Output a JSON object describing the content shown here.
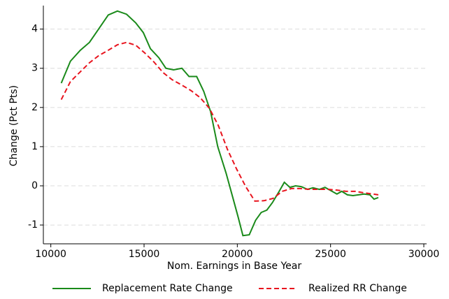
{
  "chart_data": {
    "type": "line",
    "xlabel": "Nom. Earnings in Base Year",
    "ylabel": "Change (Pct Pts)",
    "xlim": [
      9600,
      30150
    ],
    "ylim": [
      -1.48,
      4.6
    ],
    "xticks": [
      10000,
      15000,
      20000,
      25000,
      30000
    ],
    "yticks": [
      -1,
      0,
      1,
      2,
      3,
      4
    ],
    "grid": true,
    "legend": "bottom",
    "series": [
      {
        "name": "Replacement Rate Change",
        "color": "#1a8a1a",
        "dash": "solid",
        "x": [
          10560,
          11050,
          11580,
          12070,
          12560,
          13080,
          13570,
          14060,
          14550,
          14960,
          15340,
          15790,
          16170,
          16580,
          17030,
          17410,
          17820,
          18200,
          18570,
          18950,
          19400,
          19770,
          20040,
          20300,
          20640,
          20980,
          21280,
          21580,
          21880,
          22220,
          22520,
          22820,
          23120,
          23420,
          23760,
          24060,
          24400,
          24700,
          25040,
          25340,
          25600,
          25900,
          26200,
          26500,
          26800,
          27110,
          27330,
          27560
        ],
        "values": [
          2.62,
          3.18,
          3.46,
          3.66,
          4.0,
          4.36,
          4.46,
          4.38,
          4.16,
          3.91,
          3.5,
          3.27,
          3.0,
          2.96,
          3.0,
          2.79,
          2.79,
          2.41,
          1.89,
          1.0,
          0.32,
          -0.32,
          -0.79,
          -1.27,
          -1.25,
          -0.88,
          -0.68,
          -0.62,
          -0.43,
          -0.16,
          0.09,
          -0.04,
          0.0,
          -0.02,
          -0.09,
          -0.05,
          -0.09,
          -0.04,
          -0.13,
          -0.21,
          -0.14,
          -0.23,
          -0.25,
          -0.23,
          -0.21,
          -0.23,
          -0.34,
          -0.3
        ]
      },
      {
        "name": "Realized RR Change",
        "color": "#e8141e",
        "dash": "dashed",
        "x": [
          10560,
          11050,
          11580,
          12070,
          12560,
          13080,
          13570,
          14060,
          14550,
          15040,
          15530,
          16020,
          16500,
          17030,
          17520,
          18010,
          18500,
          18980,
          19470,
          19960,
          20450,
          20940,
          21430,
          21920,
          22410,
          22900,
          23380,
          23870,
          24360,
          24850,
          25340,
          25830,
          26320,
          26810,
          27290,
          27560
        ],
        "values": [
          2.2,
          2.66,
          2.91,
          3.14,
          3.32,
          3.46,
          3.6,
          3.66,
          3.59,
          3.39,
          3.16,
          2.89,
          2.71,
          2.57,
          2.43,
          2.25,
          1.98,
          1.54,
          0.93,
          0.43,
          -0.02,
          -0.39,
          -0.38,
          -0.32,
          -0.14,
          -0.07,
          -0.07,
          -0.09,
          -0.09,
          -0.09,
          -0.11,
          -0.14,
          -0.14,
          -0.18,
          -0.21,
          -0.23
        ]
      }
    ]
  }
}
